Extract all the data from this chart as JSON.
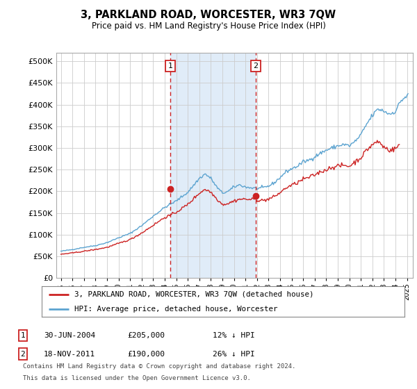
{
  "title": "3, PARKLAND ROAD, WORCESTER, WR3 7QW",
  "subtitle": "Price paid vs. HM Land Registry's House Price Index (HPI)",
  "legend_line1": "3, PARKLAND ROAD, WORCESTER, WR3 7QW (detached house)",
  "legend_line2": "HPI: Average price, detached house, Worcester",
  "marker1_date": 2004.496,
  "marker1_value": 205000,
  "marker1_label": "1",
  "marker1_text": "30-JUN-2004",
  "marker1_price": "£205,000",
  "marker1_hpi": "12% ↓ HPI",
  "marker2_date": 2011.88,
  "marker2_value": 190000,
  "marker2_label": "2",
  "marker2_text": "18-NOV-2011",
  "marker2_price": "£190,000",
  "marker2_hpi": "26% ↓ HPI",
  "footnote1": "Contains HM Land Registry data © Crown copyright and database right 2024.",
  "footnote2": "This data is licensed under the Open Government Licence v3.0.",
  "hpi_color": "#5ba3d0",
  "price_color": "#cc2222",
  "marker_color": "#cc2222",
  "background_color": "#ffffff",
  "grid_color": "#cccccc",
  "highlight_color": "#e0ecf8",
  "ylim": [
    0,
    520000
  ],
  "yticks": [
    0,
    50000,
    100000,
    150000,
    200000,
    250000,
    300000,
    350000,
    400000,
    450000,
    500000
  ],
  "xlim_start": 1994.6,
  "xlim_end": 2025.5
}
